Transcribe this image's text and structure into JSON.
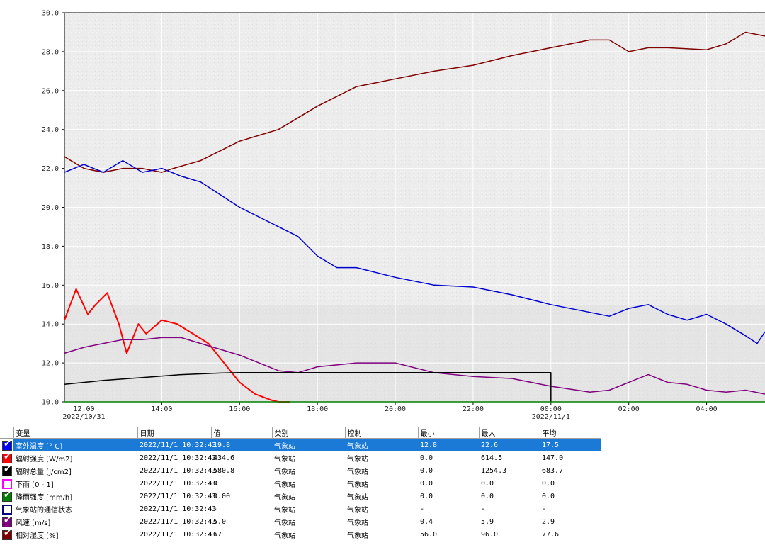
{
  "chart_data": {
    "type": "line",
    "title": "",
    "ylim": [
      10.0,
      30.0
    ],
    "y_ticks": [
      "10.0",
      "12.0",
      "14.0",
      "16.0",
      "18.0",
      "20.0",
      "22.0",
      "24.0",
      "26.0",
      "28.0",
      "30.0"
    ],
    "x_ticks": [
      {
        "label": "12:00",
        "date": "2022/10/31"
      },
      {
        "label": "14:00",
        "date": ""
      },
      {
        "label": "16:00",
        "date": ""
      },
      {
        "label": "18:00",
        "date": ""
      },
      {
        "label": "20:00",
        "date": ""
      },
      {
        "label": "22:00",
        "date": ""
      },
      {
        "label": "00:00",
        "date": "2022/11/1"
      },
      {
        "label": "02:00",
        "date": ""
      },
      {
        "label": "04:00",
        "date": ""
      }
    ],
    "x_unit": "hours since 2022/10/31 00:00",
    "xlim": [
      11.5,
      29.5
    ],
    "grid": true,
    "series": [
      {
        "name": "相对湿度 [%]",
        "color": "#800000",
        "x": [
          11.5,
          12.0,
          12.5,
          13.0,
          13.5,
          14.0,
          14.3,
          15.0,
          16.0,
          17.0,
          18.0,
          19.0,
          20.0,
          21.0,
          22.0,
          23.0,
          24.0,
          25.0,
          25.5,
          26.0,
          26.5,
          27.0,
          28.0,
          28.5,
          29.0,
          29.5
        ],
        "y": [
          22.6,
          22.0,
          21.8,
          22.0,
          22.0,
          21.8,
          22.0,
          22.4,
          23.4,
          24.0,
          25.2,
          26.2,
          26.6,
          27.0,
          27.3,
          27.8,
          28.2,
          28.6,
          28.6,
          28.0,
          28.2,
          28.2,
          28.1,
          28.4,
          29.0,
          28.8
        ]
      },
      {
        "name": "室外温度 [° C]",
        "color": "#0000d0",
        "x": [
          11.5,
          12.0,
          12.5,
          13.0,
          13.5,
          14.0,
          14.5,
          15.0,
          16.0,
          17.0,
          17.5,
          18.0,
          18.5,
          19.0,
          20.0,
          21.0,
          22.0,
          23.0,
          24.0,
          25.0,
          25.5,
          26.0,
          26.5,
          27.0,
          27.5,
          28.0,
          28.5,
          29.0,
          29.3,
          29.5
        ],
        "y": [
          21.8,
          22.2,
          21.8,
          22.4,
          21.8,
          22.0,
          21.6,
          21.3,
          20.0,
          19.0,
          18.5,
          17.5,
          16.9,
          16.9,
          16.4,
          16.0,
          15.9,
          15.5,
          15.0,
          14.6,
          14.4,
          14.8,
          15.0,
          14.5,
          14.2,
          14.5,
          14.0,
          13.4,
          13.0,
          13.6
        ]
      },
      {
        "name": "辐射强度 [W/m2]",
        "color": "#ff0000",
        "x": [
          11.5,
          11.8,
          12.1,
          12.3,
          12.6,
          12.9,
          13.1,
          13.4,
          13.6,
          14.0,
          14.4,
          14.8,
          15.2,
          15.6,
          16.0,
          16.4,
          16.8,
          17.0,
          17.3
        ],
        "y": [
          14.2,
          15.8,
          14.5,
          15.0,
          15.6,
          14.0,
          12.5,
          14.0,
          13.5,
          14.2,
          14.0,
          13.5,
          13.0,
          12.0,
          11.0,
          10.4,
          10.1,
          10.0,
          10.0
        ]
      },
      {
        "name": "风速 [m/s]",
        "color": "#800080",
        "x": [
          11.5,
          12.0,
          12.5,
          13.0,
          13.5,
          14.0,
          14.5,
          15.0,
          16.0,
          17.0,
          17.5,
          18.0,
          19.0,
          20.0,
          21.0,
          22.0,
          23.0,
          24.0,
          25.0,
          25.5,
          26.0,
          26.5,
          27.0,
          27.5,
          28.0,
          28.5,
          29.0,
          29.5
        ],
        "y": [
          12.5,
          12.8,
          13.0,
          13.2,
          13.2,
          13.3,
          13.3,
          13.0,
          12.4,
          11.6,
          11.5,
          11.8,
          12.0,
          12.0,
          11.5,
          11.3,
          11.2,
          10.8,
          10.5,
          10.6,
          11.0,
          11.4,
          11.0,
          10.9,
          10.6,
          10.5,
          10.6,
          10.4
        ]
      },
      {
        "name": "辐射总量 [J/cm2]",
        "color": "#000000",
        "x": [
          11.5,
          12.5,
          13.5,
          14.5,
          15.5,
          16.0,
          20.0,
          24.0,
          24.0
        ],
        "y": [
          10.9,
          11.1,
          11.25,
          11.4,
          11.48,
          11.5,
          11.5,
          11.5,
          10.0
        ]
      },
      {
        "name": "降雨强度 [mm/h]",
        "color": "#008000",
        "x": [
          11.5,
          29.5
        ],
        "y": [
          10.0,
          10.0
        ]
      }
    ]
  },
  "table": {
    "headers": [
      "变量",
      "日期",
      "值",
      "类别",
      "控制",
      "最小",
      "最大",
      "平均"
    ],
    "rows": [
      {
        "color": "#0000ff",
        "checked": true,
        "name": "室外温度 [° C]",
        "date": "2022/11/1 10:32:43",
        "value": "19.8",
        "category": "气象站",
        "control": "气象站",
        "min": "12.8",
        "max": "22.6",
        "avg": "17.5",
        "selected": true
      },
      {
        "color": "#ff0000",
        "checked": true,
        "name": "辐射强度 [W/m2]",
        "date": "2022/11/1 10:32:43",
        "value": "434.6",
        "category": "气象站",
        "control": "气象站",
        "min": "0.0",
        "max": "614.5",
        "avg": "147.0",
        "selected": false
      },
      {
        "color": "#000000",
        "checked": true,
        "name": "辐射总量 [J/cm2]",
        "date": "2022/11/1 10:32:43",
        "value": "580.8",
        "category": "气象站",
        "control": "气象站",
        "min": "0.0",
        "max": "1254.3",
        "avg": "683.7",
        "selected": false
      },
      {
        "color": "#ff00ff",
        "checked": false,
        "name": "下雨 [0 - 1]",
        "date": "2022/11/1 10:32:43",
        "value": "0",
        "category": "气象站",
        "control": "气象站",
        "min": "0.0",
        "max": "0.0",
        "avg": "0.0",
        "selected": false
      },
      {
        "color": "#008000",
        "checked": true,
        "name": "降雨强度 [mm/h]",
        "date": "2022/11/1 10:32:43",
        "value": "0.00",
        "category": "气象站",
        "control": "气象站",
        "min": "0.0",
        "max": "0.0",
        "avg": "0.0",
        "selected": false
      },
      {
        "color": "#000080",
        "checked": false,
        "name": "气象站的通信状态",
        "date": "2022/11/1 10:32:43",
        "value": "-",
        "category": "气象站",
        "control": "气象站",
        "min": "-",
        "max": "-",
        "avg": "-",
        "selected": false
      },
      {
        "color": "#800080",
        "checked": true,
        "name": "风速 [m/s]",
        "date": "2022/11/1 10:32:43",
        "value": "5.0",
        "category": "气象站",
        "control": "气象站",
        "min": "0.4",
        "max": "5.9",
        "avg": "2.9",
        "selected": false
      },
      {
        "color": "#800000",
        "checked": true,
        "name": "相对湿度 [%]",
        "date": "2022/11/1 10:32:43",
        "value": "67",
        "category": "气象站",
        "control": "气象站",
        "min": "56.0",
        "max": "96.0",
        "avg": "77.6",
        "selected": false
      }
    ]
  }
}
